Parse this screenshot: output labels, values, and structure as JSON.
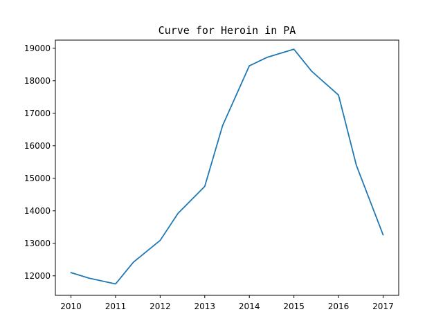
{
  "chart_data": {
    "type": "line",
    "title": "Curve for Heroin in PA",
    "xlabel": "",
    "ylabel": "",
    "xlim": [
      2009.65,
      2017.35
    ],
    "ylim": [
      11400,
      19250
    ],
    "x_ticks": [
      2010,
      2011,
      2012,
      2013,
      2014,
      2015,
      2016,
      2017
    ],
    "y_ticks": [
      12000,
      13000,
      14000,
      15000,
      16000,
      17000,
      18000,
      19000
    ],
    "grid": false,
    "legend": "none",
    "series": [
      {
        "color": "#1f77b4",
        "x": [
          2010,
          2010.4,
          2011,
          2011.4,
          2012,
          2012.4,
          2013,
          2013.4,
          2014,
          2014.4,
          2015,
          2015.4,
          2016,
          2016.4,
          2017
        ],
        "y": [
          12100,
          11930,
          11750,
          12420,
          13090,
          13920,
          14750,
          16620,
          18460,
          18720,
          18970,
          18290,
          17560,
          15400,
          13260
        ]
      }
    ]
  }
}
